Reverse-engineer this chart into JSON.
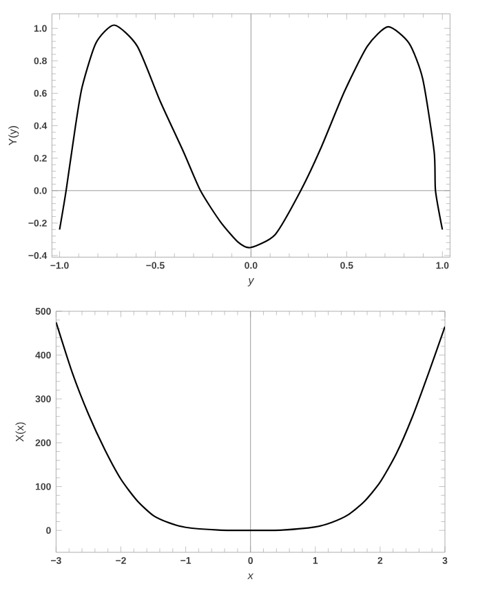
{
  "chart_data": [
    {
      "type": "line",
      "xlabel": "y",
      "ylabel": "Y(y)",
      "xlim": [
        -1.04,
        1.04
      ],
      "ylim": [
        -0.41,
        1.09
      ],
      "xticks": [
        {
          "value": -1,
          "label": "−1.0"
        },
        {
          "value": -0.5,
          "label": "−0.5"
        },
        {
          "value": 0,
          "label": "0.0"
        },
        {
          "value": 0.5,
          "label": "0.5"
        },
        {
          "value": 1,
          "label": "1.0"
        }
      ],
      "yticks": [
        {
          "value": -0.4,
          "label": "−0.4"
        },
        {
          "value": -0.2,
          "label": "−0.2"
        },
        {
          "value": 0,
          "label": "0.0"
        },
        {
          "value": 0.2,
          "label": "0.2"
        },
        {
          "value": 0.4,
          "label": "0.4"
        },
        {
          "value": 0.6,
          "label": "0.6"
        },
        {
          "value": 0.8,
          "label": "0.8"
        },
        {
          "value": 1,
          "label": "1.0"
        }
      ],
      "x": [
        -1,
        -0.966,
        -0.918,
        -0.882,
        -0.81,
        -0.714,
        -0.594,
        -0.474,
        -0.353,
        -0.264,
        -0.161,
        -0.065,
        0,
        0.127,
        0.26,
        0.368,
        0.488,
        0.608,
        0.716,
        0.825,
        0.897,
        0.957,
        0.964,
        1
      ],
      "series": [
        {
          "color": "#000000",
          "values": [
            -0.24,
            0,
            0.39,
            0.64,
            0.91,
            1.02,
            0.89,
            0.55,
            0.24,
            0,
            -0.19,
            -0.32,
            -0.35,
            -0.27,
            0,
            0.27,
            0.61,
            0.89,
            1.01,
            0.91,
            0.69,
            0.24,
            0,
            -0.24
          ]
        }
      ],
      "ref_lines": [
        {
          "axis": "x",
          "value": 0,
          "color": "#999999"
        },
        {
          "axis": "y",
          "value": 0,
          "color": "#999999"
        }
      ],
      "marker": "none",
      "line_style": "solid",
      "grid": false
    },
    {
      "type": "line",
      "xlabel": "x",
      "ylabel": "X(x)",
      "xlim": [
        -3,
        3
      ],
      "ylim": [
        -50,
        500
      ],
      "xticks": [
        {
          "value": -3,
          "label": "−3"
        },
        {
          "value": -2,
          "label": "−2"
        },
        {
          "value": -1,
          "label": "−1"
        },
        0,
        1,
        2,
        3
      ],
      "yticks": [
        0,
        100,
        200,
        300,
        400,
        500
      ],
      "x": [
        -3,
        -2.75,
        -2.5,
        -2.25,
        -2,
        -1.75,
        -1.5,
        -1.25,
        -1,
        -0.5,
        0,
        0.5,
        1,
        1.25,
        1.5,
        1.75,
        2,
        2.25,
        2.5,
        2.75,
        3
      ],
      "series": [
        {
          "color": "#000000",
          "values": [
            475,
            360,
            265,
            185,
            117,
            68,
            34,
            17,
            7,
            1,
            0,
            1,
            8,
            18,
            35,
            65,
            110,
            175,
            260,
            360,
            465
          ]
        }
      ],
      "ref_lines": [
        {
          "axis": "x",
          "value": 0,
          "color": "#999999"
        }
      ],
      "marker": "none",
      "line_style": "solid",
      "grid": false
    }
  ]
}
